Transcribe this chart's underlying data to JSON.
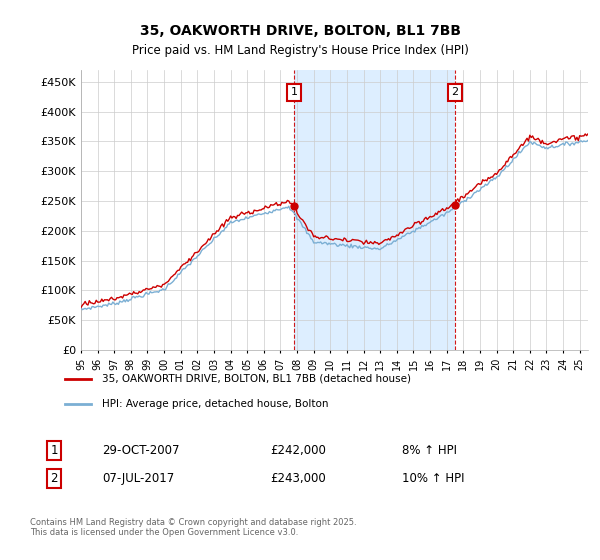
{
  "title_line1": "35, OAKWORTH DRIVE, BOLTON, BL1 7BB",
  "title_line2": "Price paid vs. HM Land Registry's House Price Index (HPI)",
  "ylim": [
    0,
    470000
  ],
  "yticks": [
    0,
    50000,
    100000,
    150000,
    200000,
    250000,
    300000,
    350000,
    400000,
    450000
  ],
  "ytick_labels": [
    "£0",
    "£50K",
    "£100K",
    "£150K",
    "£200K",
    "£250K",
    "£300K",
    "£350K",
    "£400K",
    "£450K"
  ],
  "hpi_color": "#7bafd4",
  "price_color": "#cc0000",
  "shading_color": "#ddeeff",
  "dashed_line_color": "#cc0000",
  "background_color": "#ffffff",
  "grid_color": "#cccccc",
  "annotation1": {
    "label": "1",
    "date": "29-OCT-2007",
    "price": "£242,000",
    "hpi": "8% ↑ HPI"
  },
  "annotation2": {
    "label": "2",
    "date": "07-JUL-2017",
    "price": "£243,000",
    "hpi": "10% ↑ HPI"
  },
  "legend_line1": "35, OAKWORTH DRIVE, BOLTON, BL1 7BB (detached house)",
  "legend_line2": "HPI: Average price, detached house, Bolton",
  "footer": "Contains HM Land Registry data © Crown copyright and database right 2025.\nThis data is licensed under the Open Government Licence v3.0.",
  "sale1_year": 2007.83,
  "sale1_price": 242000,
  "sale2_year": 2017.5,
  "sale2_price": 243000
}
